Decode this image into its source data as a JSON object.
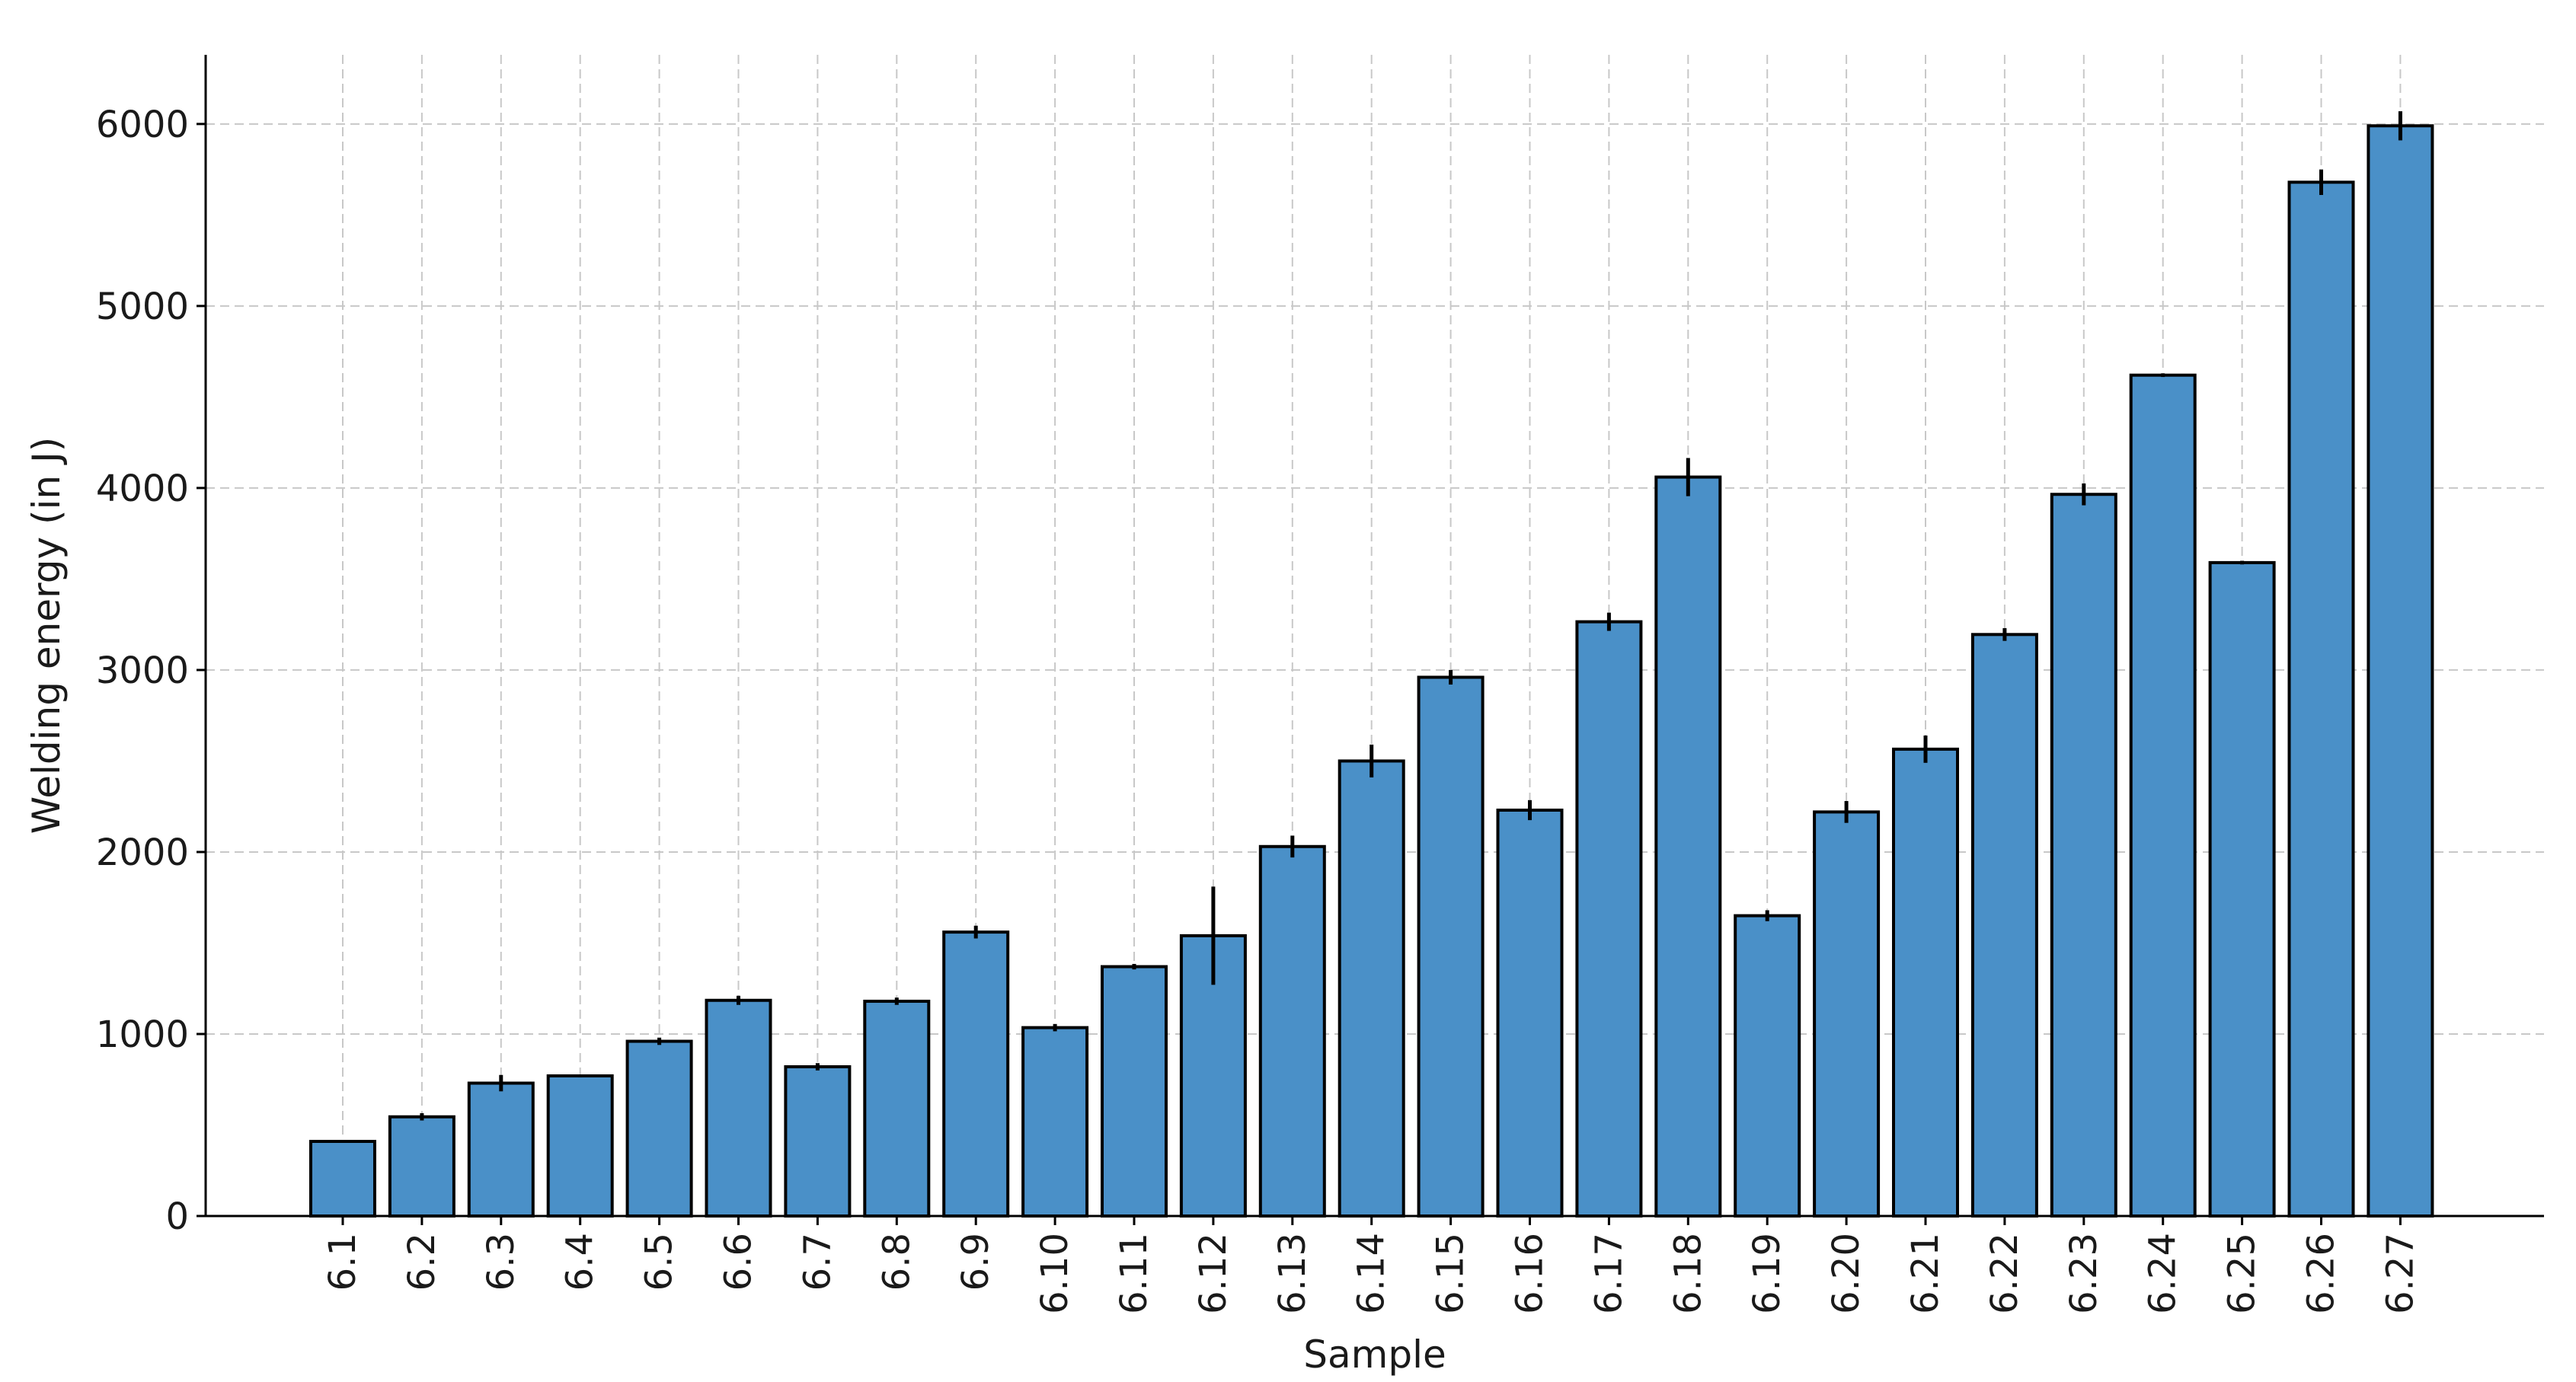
{
  "chart_data": {
    "type": "bar",
    "title": "",
    "xlabel": "Sample",
    "ylabel": "Welding energy (in J)",
    "ylim": [
      0,
      6380
    ],
    "yticks": [
      0,
      1000,
      2000,
      3000,
      4000,
      5000,
      6000
    ],
    "grid": true,
    "bar_color": "#4a90c8",
    "categories": [
      "6.1",
      "6.2",
      "6.3",
      "6.4",
      "6.5",
      "6.6",
      "6.7",
      "6.8",
      "6.9",
      "6.10",
      "6.11",
      "6.12",
      "6.13",
      "6.14",
      "6.15",
      "6.16",
      "6.17",
      "6.18",
      "6.19",
      "6.20",
      "6.21",
      "6.22",
      "6.23",
      "6.24",
      "6.25",
      "6.26",
      "6.27"
    ],
    "values": [
      410,
      545,
      730,
      770,
      960,
      1185,
      820,
      1180,
      1560,
      1035,
      1370,
      1540,
      2030,
      2500,
      2960,
      2230,
      3265,
      4060,
      1650,
      2220,
      2565,
      3195,
      3965,
      4620,
      3590,
      5680,
      5990
    ],
    "errors": [
      8,
      20,
      45,
      8,
      20,
      25,
      20,
      20,
      35,
      20,
      15,
      270,
      60,
      90,
      40,
      55,
      50,
      105,
      30,
      60,
      75,
      35,
      60,
      10,
      10,
      70,
      80
    ]
  }
}
